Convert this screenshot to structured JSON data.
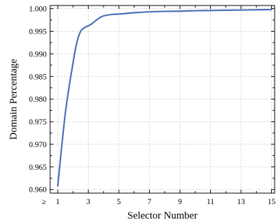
{
  "chart_data": {
    "type": "line",
    "title": "",
    "xlabel": "Selector Number",
    "ylabel": "Domain Percentage",
    "xlim": [
      0.5,
      15.2
    ],
    "ylim": [
      0.9592,
      1.0007
    ],
    "grid": true,
    "x_ticks": [
      1,
      3,
      5,
      7,
      9,
      11,
      13,
      15
    ],
    "x_tick_labels": [
      "1",
      "3",
      "5",
      "7",
      "9",
      "11",
      "13",
      "15"
    ],
    "x_prefix_label": "≥",
    "y_ticks": [
      0.96,
      0.965,
      0.97,
      0.975,
      0.98,
      0.985,
      0.99,
      0.995,
      1.0
    ],
    "y_tick_labels": [
      "0.960",
      "0.965",
      "0.970",
      "0.975",
      "0.980",
      "0.985",
      "0.990",
      "0.995",
      "1.000"
    ],
    "series": [
      {
        "color": "#4a6fb5",
        "x": [
          1,
          1.5,
          2,
          2.25,
          2.5,
          2.75,
          3,
          3.25,
          3.5,
          3.75,
          4,
          4.5,
          5,
          6,
          7,
          8,
          9,
          10,
          11,
          12,
          13,
          14,
          15
        ],
        "y": [
          0.9608,
          0.977,
          0.988,
          0.9925,
          0.995,
          0.9958,
          0.9962,
          0.9967,
          0.9974,
          0.998,
          0.9984,
          0.9987,
          0.9988,
          0.9991,
          0.9993,
          0.9994,
          0.99945,
          0.99955,
          0.9996,
          0.99965,
          0.9997,
          0.99975,
          0.9998
        ]
      }
    ]
  }
}
